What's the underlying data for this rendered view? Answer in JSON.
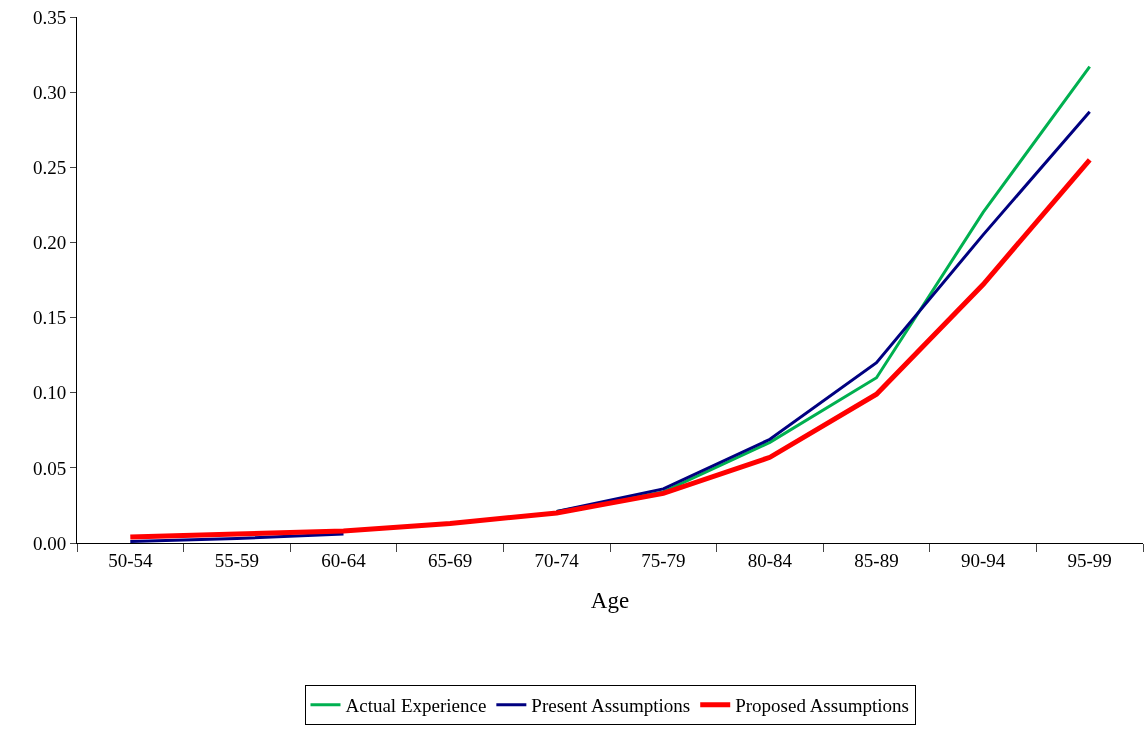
{
  "chart_data": {
    "type": "line",
    "xlabel": "Age",
    "categories": [
      "50-54",
      "55-59",
      "60-64",
      "65-69",
      "70-74",
      "75-79",
      "80-84",
      "85-89",
      "90-94",
      "95-99"
    ],
    "series": [
      {
        "name": "Actual Experience",
        "color": "#00b050",
        "values": [
          null,
          null,
          null,
          null,
          0.021,
          0.034,
          0.067,
          0.11,
          0.22,
          0.317
        ]
      },
      {
        "name": "Present Assumptions",
        "color": "#000080",
        "values": [
          0.001,
          0.003,
          0.006,
          null,
          0.021,
          0.036,
          0.069,
          0.12,
          0.205,
          0.287
        ]
      },
      {
        "name": "Proposed Assumptions",
        "color": "#ff0000",
        "values": [
          0.004,
          0.006,
          0.008,
          0.013,
          0.02,
          0.033,
          0.057,
          0.099,
          0.172,
          0.255
        ]
      }
    ],
    "ylim": [
      0,
      0.35
    ],
    "yticks": [
      {
        "value": 0,
        "label": "0.00"
      },
      {
        "value": 0.05,
        "label": "0.05"
      },
      {
        "value": 0.1,
        "label": "0.10"
      },
      {
        "value": 0.15,
        "label": "0.15"
      },
      {
        "value": 0.2,
        "label": "0.20"
      },
      {
        "value": 0.25,
        "label": "0.25"
      },
      {
        "value": 0.3,
        "label": "0.30"
      },
      {
        "value": 0.35,
        "label": "0.35"
      }
    ],
    "legend": "bottom",
    "marker": "none",
    "line_style": "solid"
  }
}
